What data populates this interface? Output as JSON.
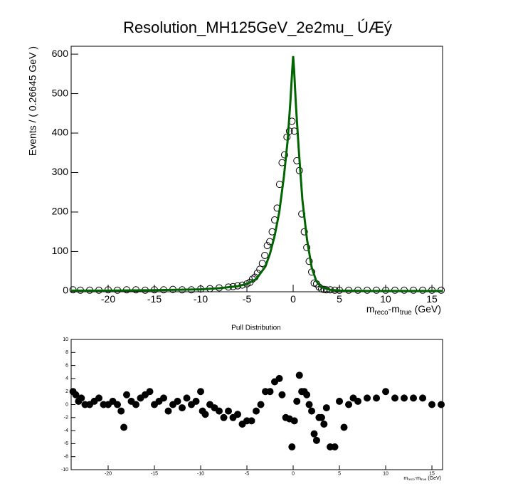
{
  "chart_data": [
    {
      "type": "scatter",
      "title": "Resolution_MH125GeV_2e2mu_ ÚÆý",
      "y_label": "Events / ( 0.26645 GeV )",
      "x_label": [
        "m",
        "reco",
        "-m",
        "true",
        " (GeV)"
      ],
      "xlim": [
        -24,
        16.15
      ],
      "ylim": [
        -2,
        620
      ],
      "xticks": [
        -20,
        -15,
        -10,
        -5,
        0,
        5,
        10,
        15
      ],
      "yticks": [
        0,
        100,
        200,
        300,
        400,
        500,
        600
      ],
      "series": [
        {
          "style": "open",
          "color": "#000000",
          "x": [
            -23.8,
            -23,
            -22,
            -21,
            -20,
            -19,
            -18,
            -17,
            -16,
            -15,
            -14,
            -13,
            -12,
            -11,
            -10,
            -9,
            -8,
            -7,
            -6.5,
            -6,
            -5.5,
            -5,
            -4.67,
            -4.4,
            -4.13,
            -3.87,
            -3.6,
            -3.33,
            -3.07,
            -2.8,
            -2.53,
            -2.27,
            -2.0,
            -1.73,
            -1.47,
            -1.2,
            -0.93,
            -0.67,
            -0.4,
            -0.13,
            0.13,
            0.4,
            0.67,
            0.93,
            1.2,
            1.47,
            1.73,
            2.0,
            2.27,
            2.53,
            2.8,
            3.07,
            3.33,
            3.6,
            4,
            4.5,
            5,
            6,
            7,
            8,
            9,
            10,
            11,
            12,
            13,
            14,
            15,
            16
          ],
          "values": [
            3,
            2,
            2,
            2,
            3,
            2,
            3,
            3,
            2,
            3,
            3,
            4,
            3,
            3,
            5,
            6,
            8,
            10,
            11,
            13,
            15,
            18,
            22,
            30,
            35,
            45,
            55,
            70,
            90,
            115,
            125,
            150,
            180,
            210,
            270,
            325,
            345,
            390,
            405,
            430,
            405,
            330,
            305,
            195,
            150,
            110,
            75,
            48,
            20,
            18,
            10,
            5,
            4,
            3,
            3,
            2,
            2,
            2,
            2,
            2,
            2,
            2,
            2,
            2,
            2,
            2,
            2,
            2
          ]
        },
        {
          "style": "line",
          "color": "#006400",
          "x": [
            -24,
            -20,
            -15,
            -10,
            -8,
            -6,
            -5,
            -4,
            -3,
            -2.5,
            -2,
            -1.5,
            -1,
            -0.6,
            -0.3,
            -0.1,
            0,
            0.1,
            0.3,
            0.6,
            1,
            1.5,
            2,
            2.5,
            3,
            4,
            5,
            8,
            12,
            16.15
          ],
          "values": [
            1,
            1,
            2,
            4,
            7,
            12,
            18,
            30,
            62,
            95,
            140,
            200,
            290,
            380,
            480,
            560,
            595,
            560,
            470,
            360,
            230,
            130,
            60,
            25,
            10,
            3,
            1,
            0,
            0,
            0
          ]
        }
      ]
    },
    {
      "type": "scatter",
      "title": "Pull Distribution",
      "x_label": [
        "m",
        "reco",
        "-m",
        "true",
        " (GeV)"
      ],
      "xlim": [
        -24,
        16.15
      ],
      "ylim": [
        -10,
        10
      ],
      "xticks": [
        -20,
        -15,
        -10,
        -5,
        0,
        5,
        10,
        15
      ],
      "yticks": [
        -10,
        -8,
        -6,
        -4,
        -2,
        0,
        2,
        4,
        6,
        8,
        10
      ],
      "series": [
        {
          "style": "filled",
          "color": "#000000",
          "x": [
            -23.8,
            -23.5,
            -23.2,
            -22.9,
            -22.5,
            -22,
            -21.5,
            -21,
            -20.5,
            -20,
            -19.5,
            -19,
            -18.6,
            -18.3,
            -18,
            -17.5,
            -17,
            -16.5,
            -16,
            -15.5,
            -15,
            -14.5,
            -14,
            -13.5,
            -13,
            -12.5,
            -12,
            -11.5,
            -11,
            -10.5,
            -10,
            -9.8,
            -9.5,
            -9,
            -8.5,
            -8,
            -7.5,
            -7,
            -6.5,
            -6,
            -5.5,
            -5,
            -4.5,
            -4,
            -3.5,
            -3,
            -2.5,
            -2,
            -1.5,
            -1.2,
            -0.8,
            -0.4,
            -0.13,
            0.13,
            0.4,
            0.67,
            0.93,
            1.2,
            1.47,
            1.73,
            2.0,
            2.27,
            2.53,
            2.8,
            3.07,
            3.33,
            3.6,
            4,
            4.5,
            5,
            5.5,
            6,
            6.5,
            7,
            8,
            9,
            10,
            11,
            12,
            13,
            14,
            15,
            16
          ],
          "values": [
            2,
            1.5,
            0.5,
            1,
            0,
            0,
            0.5,
            1,
            0,
            0,
            0.5,
            0,
            -1,
            -3.5,
            1.5,
            0.5,
            0,
            1,
            1.5,
            2,
            0,
            0.5,
            1,
            -1,
            0,
            0.5,
            -0.5,
            1,
            0,
            0.5,
            2,
            -1,
            -1.5,
            0,
            -0.5,
            -1,
            -2,
            -1,
            -2,
            -1.5,
            -3,
            -2.5,
            -2.5,
            -1,
            0,
            2,
            2,
            3.5,
            4,
            1.5,
            -2,
            -2.2,
            -6.5,
            -2.5,
            0.5,
            4.5,
            2,
            2,
            1.5,
            0,
            -1,
            -4.5,
            -5.5,
            -2,
            -2,
            -3,
            -0.5,
            -6.5,
            -6.5,
            0.5,
            -3.5,
            0,
            1,
            0.5,
            1,
            1,
            2,
            1,
            1,
            1,
            1,
            0,
            0
          ]
        }
      ]
    }
  ]
}
